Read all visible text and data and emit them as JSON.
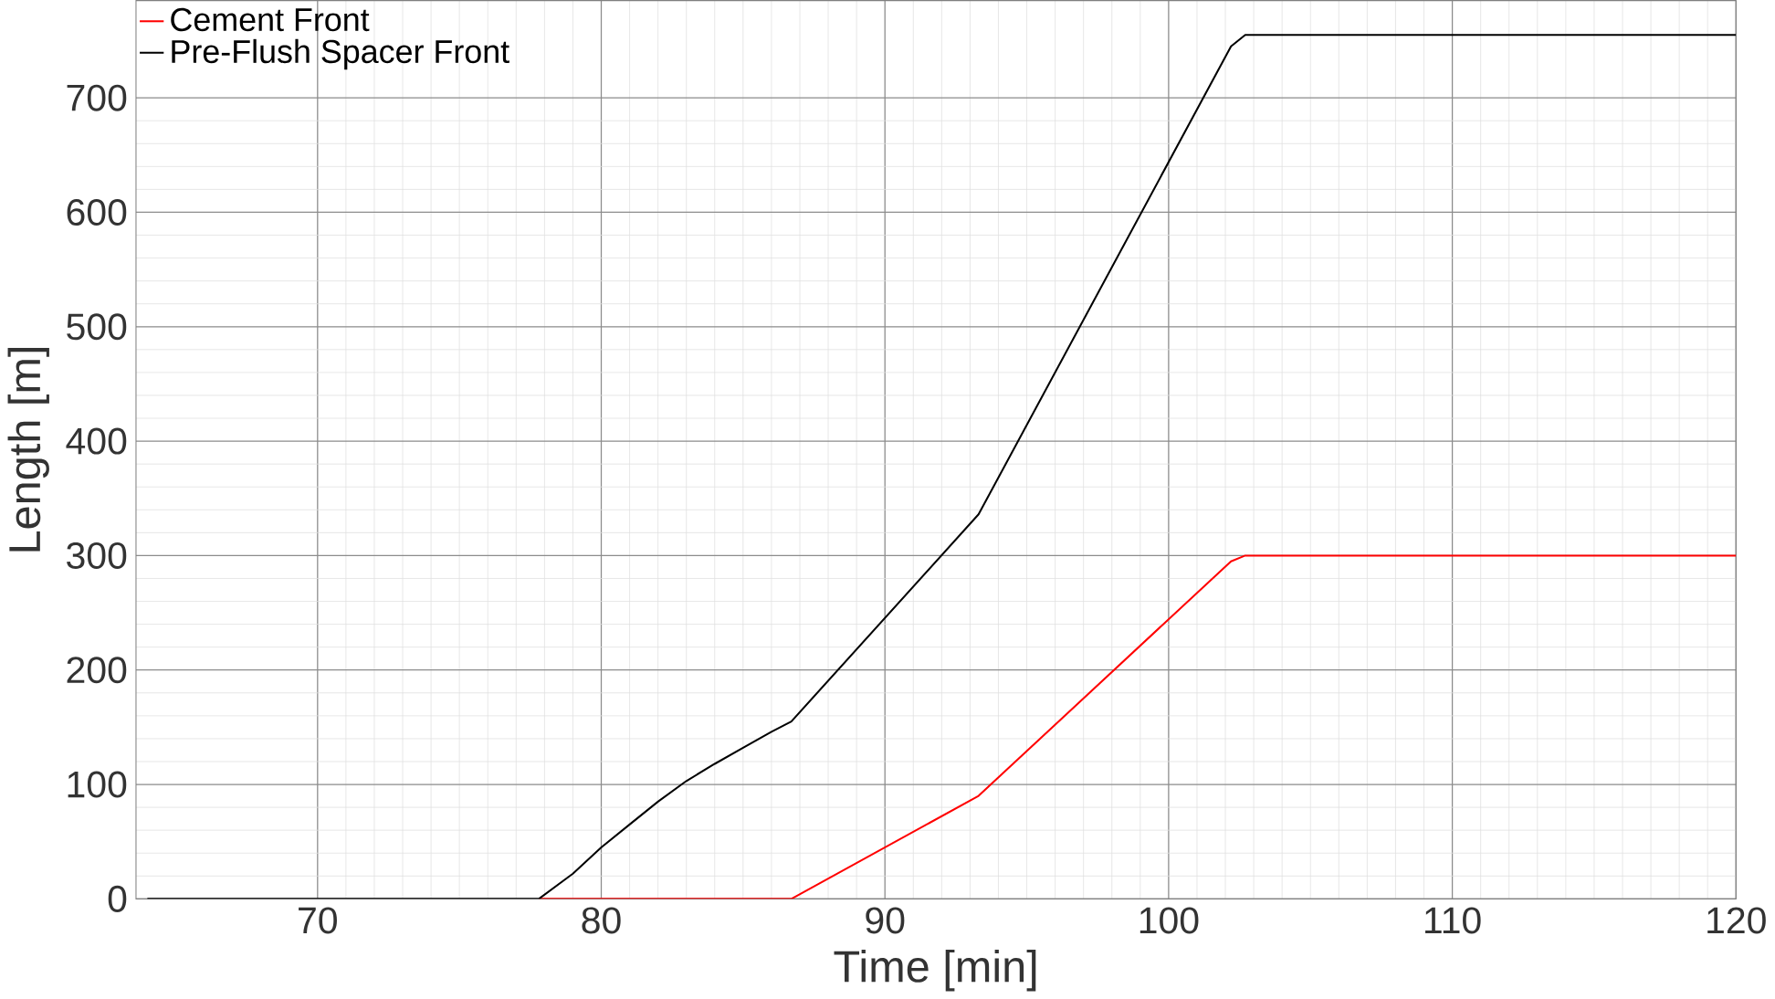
{
  "chart_data": {
    "type": "line",
    "xlabel": "Time [min]",
    "ylabel": "Length [m]",
    "xlim": [
      63.6,
      120
    ],
    "ylim": [
      0,
      785
    ],
    "xticks": [
      70,
      80,
      90,
      100,
      110,
      120
    ],
    "yticks": [
      0,
      100,
      200,
      300,
      400,
      500,
      600,
      700
    ],
    "grid": true,
    "legend": "top left",
    "marker": "none",
    "line_style": "solid",
    "series": [
      {
        "name": "Cement Front",
        "color": "#ff0000",
        "x": [
          77.8,
          86.7,
          93.3,
          102.2,
          102.7,
          120
        ],
        "values": [
          0,
          0,
          90,
          295,
          300,
          300
        ]
      },
      {
        "name": "Pre-Flush Spacer Front",
        "color": "#000000",
        "x": [
          64,
          77.8,
          79,
          80,
          81,
          82,
          83,
          84,
          85,
          86,
          86.7,
          93.3,
          102.2,
          102.7,
          120
        ],
        "values": [
          0,
          0,
          22,
          45,
          65,
          85,
          103,
          118,
          132,
          146,
          155,
          336,
          745,
          755,
          755
        ]
      }
    ]
  }
}
